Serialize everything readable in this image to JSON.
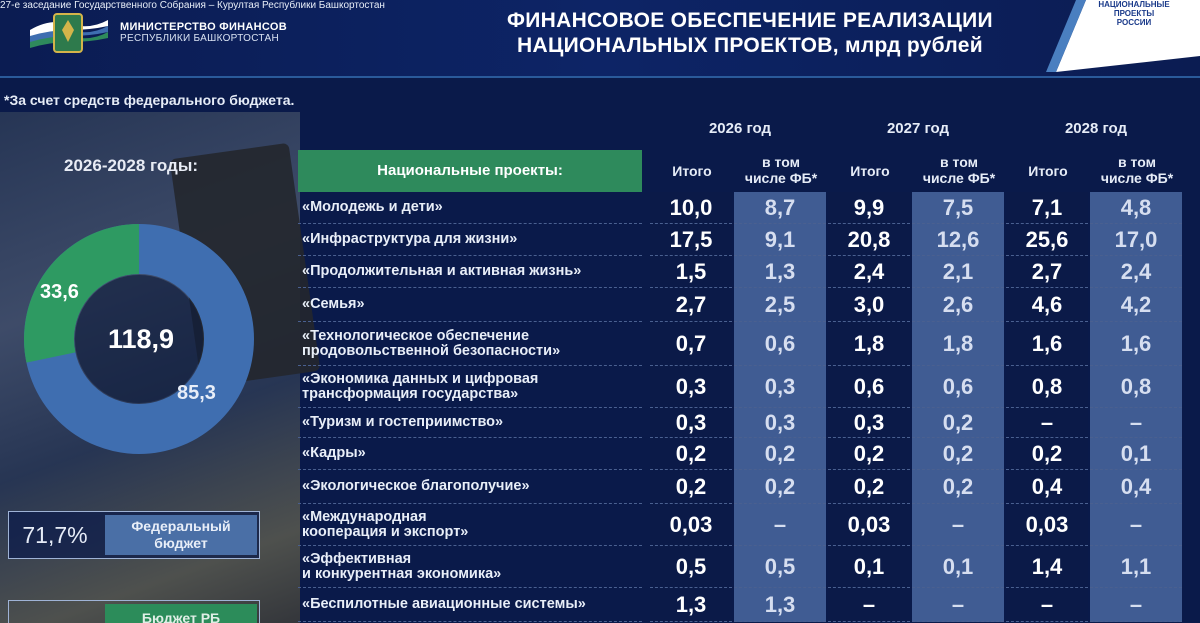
{
  "header": {
    "session_note": "27-е заседание Государственного Собрания – Курултая Республики Башкортостан",
    "ministry_line1": "МИНИСТЕРСТВО ФИНАНСОВ",
    "ministry_line2": "РЕСПУБЛИКИ БАШКОРТОСТАН",
    "title_line1": "ФИНАНСОВОЕ ОБЕСПЕЧЕНИЕ РЕАЛИЗАЦИИ",
    "title_line2": "НАЦИОНАЛЬНЫХ ПРОЕКТОВ, млрд рублей",
    "np_logo_line1": "НАЦИОНАЛЬНЫЕ",
    "np_logo_line2": "ПРОЕКТЫ",
    "np_logo_line3": "РОССИИ"
  },
  "footnote": "*За счет средств федерального бюджета.",
  "summary": {
    "years_label": "2026-2028 годы:",
    "total": "118,9",
    "green_value": "33,6",
    "blue_value": "85,3",
    "green_share": 0.283,
    "colors": {
      "green": "#2e9a62",
      "blue": "#3f6eb0"
    },
    "legend_fb_pct": "71,7%",
    "legend_fb_line1": "Федеральный",
    "legend_fb_line2": "бюджет",
    "legend_rb_label": "Бюджет РБ"
  },
  "table": {
    "projects_header": "Национальные проекты:",
    "years": [
      "2026 год",
      "2027 год",
      "2028 год"
    ],
    "col_total": "Итого",
    "col_fb_line1": "в том",
    "col_fb_line2": "числе ФБ*",
    "rows": [
      {
        "name1": "«Молодежь и дети»",
        "name2": "",
        "v": [
          "10,0",
          "8,7",
          "9,9",
          "7,5",
          "7,1",
          "4,8"
        ]
      },
      {
        "name1": "«Инфраструктура для жизни»",
        "name2": "",
        "v": [
          "17,5",
          "9,1",
          "20,8",
          "12,6",
          "25,6",
          "17,0"
        ]
      },
      {
        "name1": "«Продолжительная и активная жизнь»",
        "name2": "",
        "v": [
          "1,5",
          "1,3",
          "2,4",
          "2,1",
          "2,7",
          "2,4"
        ]
      },
      {
        "name1": "«Семья»",
        "name2": "",
        "v": [
          "2,7",
          "2,5",
          "3,0",
          "2,6",
          "4,6",
          "4,2"
        ]
      },
      {
        "name1": "«Технологическое обеспечение",
        "name2": "продовольственной безопасности»",
        "v": [
          "0,7",
          "0,6",
          "1,8",
          "1,8",
          "1,6",
          "1,6"
        ]
      },
      {
        "name1": "«Экономика данных и цифровая",
        "name2": "трансформация государства»",
        "v": [
          "0,3",
          "0,3",
          "0,6",
          "0,6",
          "0,8",
          "0,8"
        ]
      },
      {
        "name1": "«Туризм и гостеприимство»",
        "name2": "",
        "v": [
          "0,3",
          "0,3",
          "0,3",
          "0,2",
          "–",
          "–"
        ]
      },
      {
        "name1": "«Кадры»",
        "name2": "",
        "v": [
          "0,2",
          "0,2",
          "0,2",
          "0,2",
          "0,2",
          "0,1"
        ]
      },
      {
        "name1": "«Экологическое благополучие»",
        "name2": "",
        "v": [
          "0,2",
          "0,2",
          "0,2",
          "0,2",
          "0,4",
          "0,4"
        ]
      },
      {
        "name1": "«Международная",
        "name2": "кооперация и экспорт»",
        "v": [
          "0,03",
          "–",
          "0,03",
          "–",
          "0,03",
          "–"
        ]
      },
      {
        "name1": "«Эффективная",
        "name2": "и конкурентная экономика»",
        "v": [
          "0,5",
          "0,5",
          "0,1",
          "0,1",
          "1,4",
          "1,1"
        ]
      },
      {
        "name1": "«Беспилотные авиационные системы»",
        "name2": "",
        "v": [
          "1,3",
          "1,3",
          "–",
          "–",
          "–",
          "–"
        ]
      }
    ]
  }
}
